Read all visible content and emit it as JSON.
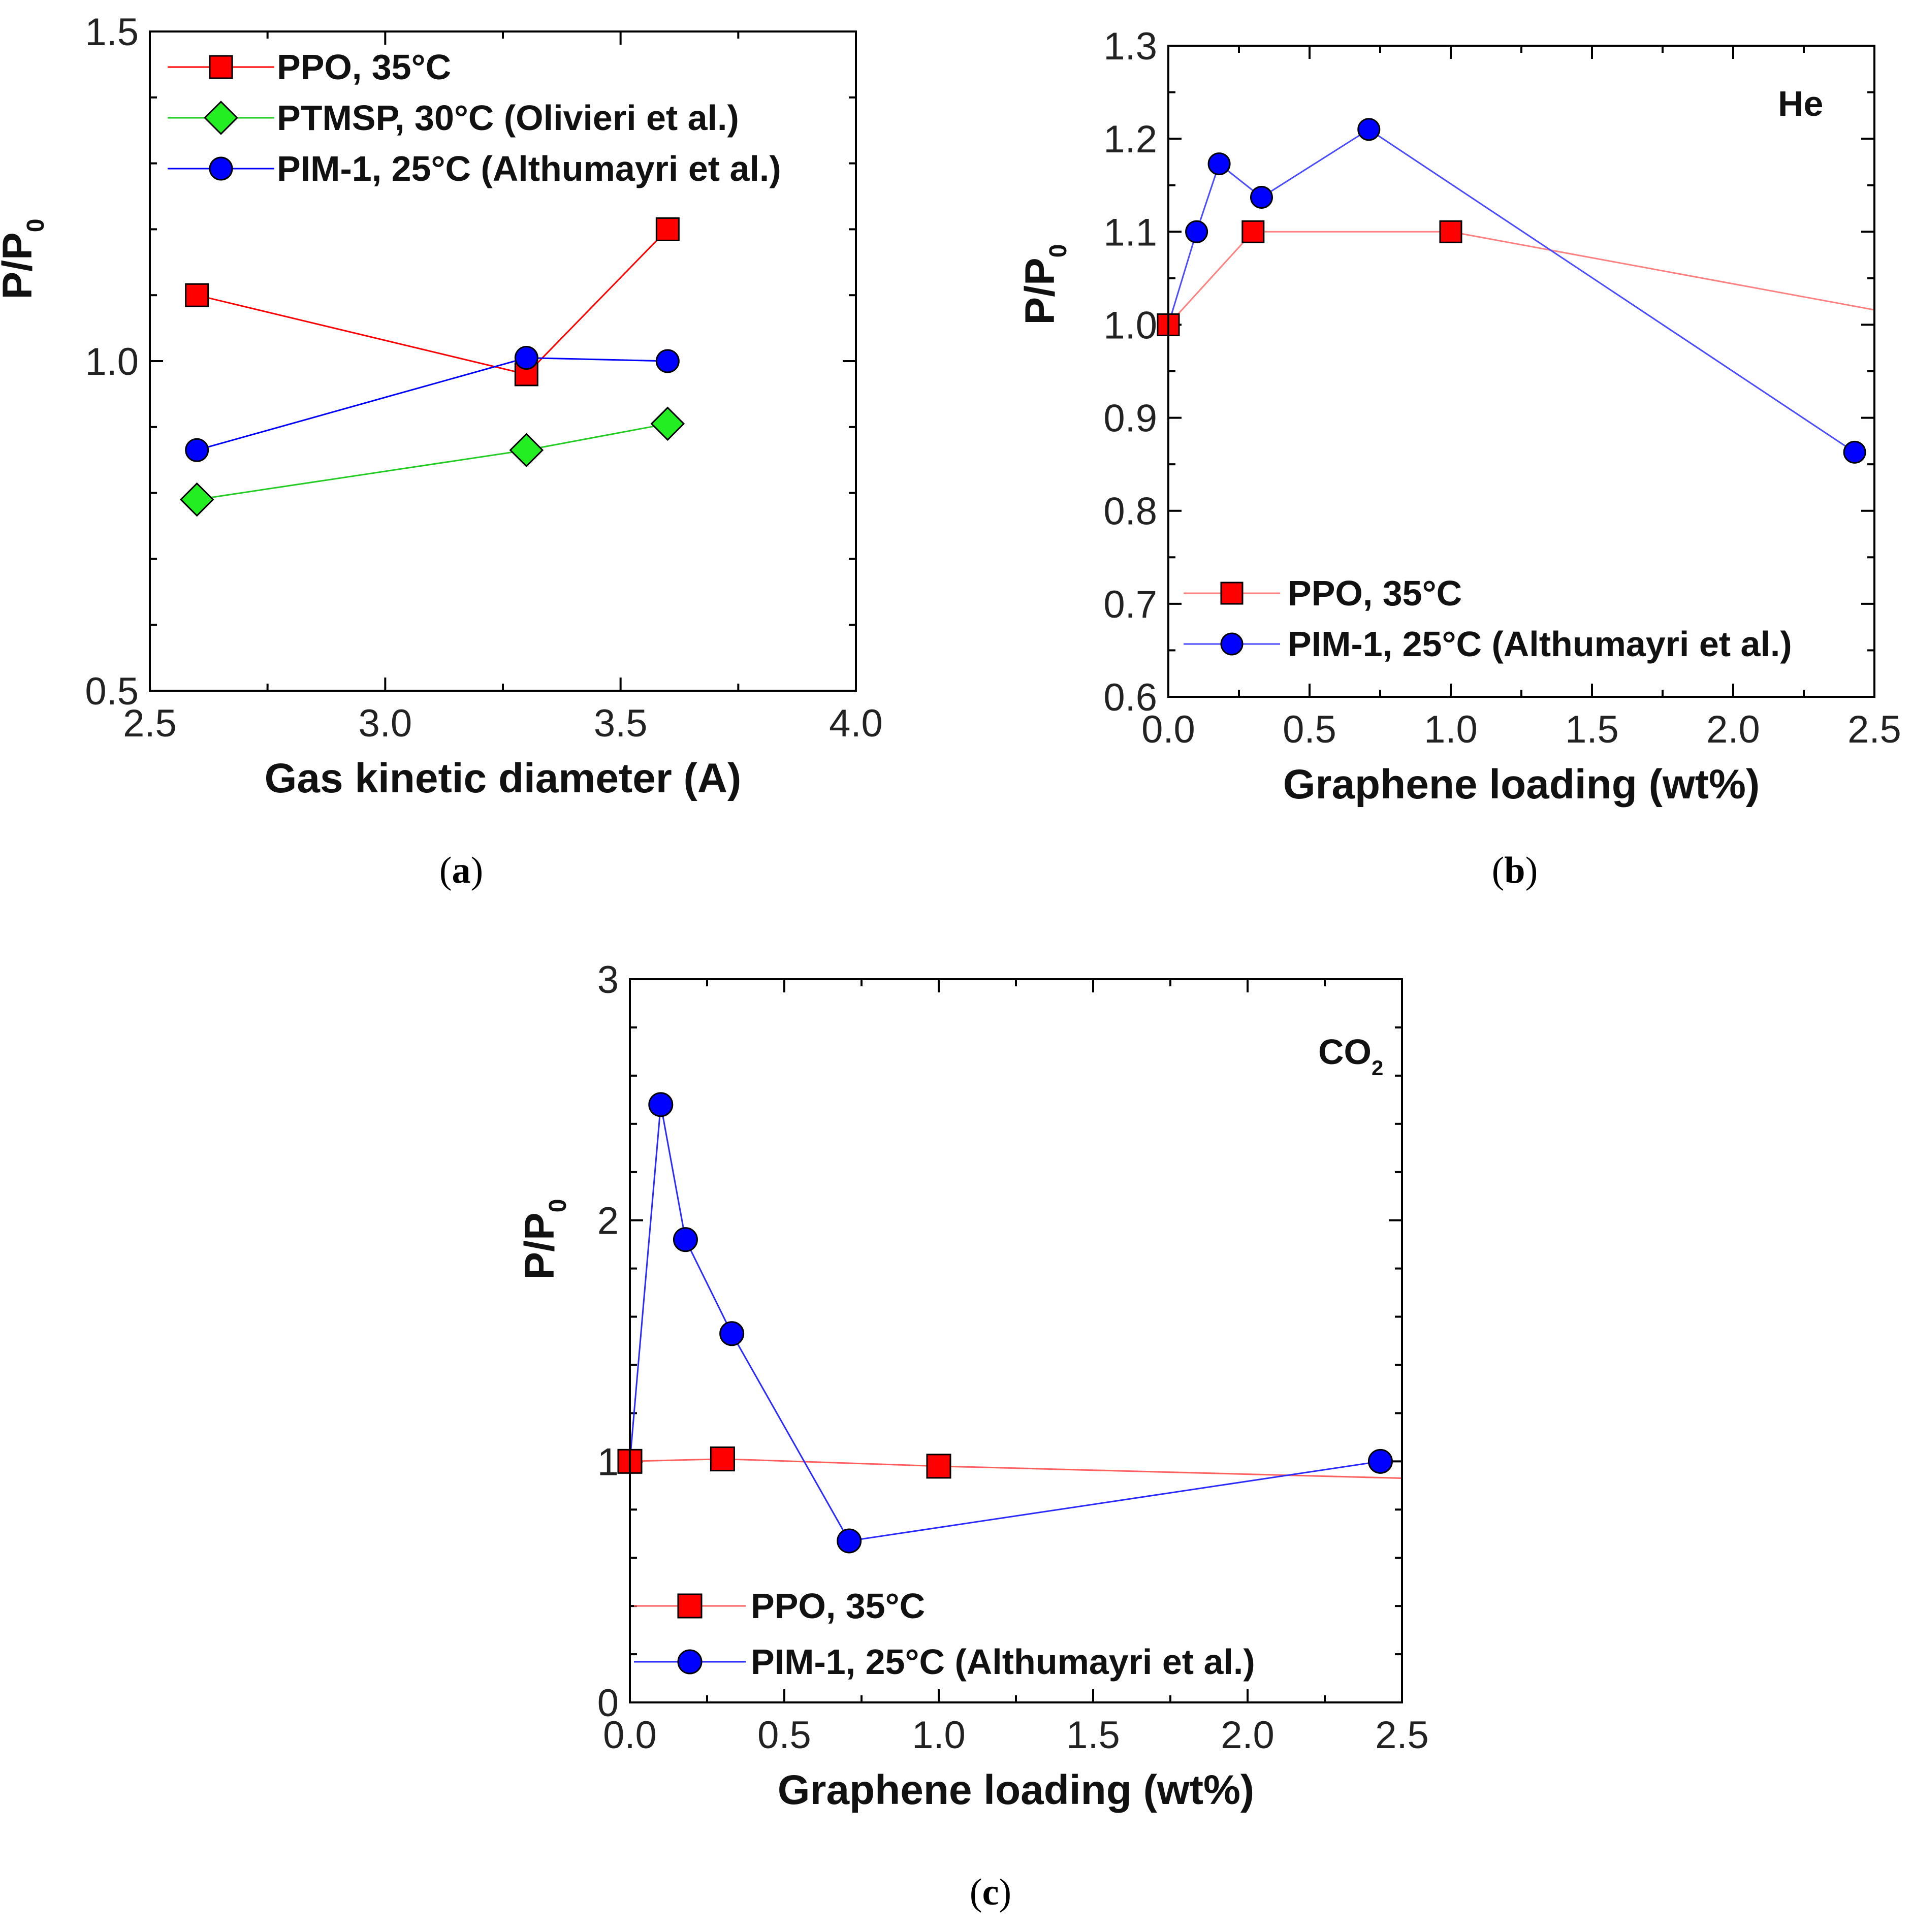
{
  "chart_data": [
    {
      "id": "a",
      "type": "line",
      "caption": "a",
      "xlabel": "Gas kinetic diameter (A)",
      "ylabel": "P/P",
      "ylabel_sub": "0",
      "xlim": [
        2.5,
        4.0
      ],
      "ylim": [
        0.5,
        1.5
      ],
      "xticks": [
        2.5,
        3.0,
        3.5,
        4.0
      ],
      "xtick_labels": [
        "2.5",
        "3.0",
        "3.5",
        "4.0"
      ],
      "yticks": [
        0.5,
        1.0,
        1.5
      ],
      "ytick_labels": [
        "0.5",
        "1.0",
        "1.5"
      ],
      "legend_position": "top-left",
      "annotation": "",
      "annotation_sub": "",
      "series": [
        {
          "name": "PPO, 35°C",
          "marker": "square",
          "color": "#ff0000",
          "line_color": "#ff0000",
          "x": [
            2.6,
            3.3,
            3.6
          ],
          "y": [
            1.1,
            0.98,
            1.2
          ]
        },
        {
          "name": "PTMSP, 30°C (Olivieri et al.)",
          "marker": "diamond",
          "color": "#22ee22",
          "line_color": "#22cc22",
          "x": [
            2.6,
            3.3,
            3.6
          ],
          "y": [
            0.79,
            0.865,
            0.905
          ]
        },
        {
          "name": "PIM-1, 25°C (Althumayri et al.)",
          "marker": "circle",
          "color": "#0000ff",
          "line_color": "#0000ff",
          "x": [
            2.6,
            3.3,
            3.6
          ],
          "y": [
            0.865,
            1.005,
            1.0
          ]
        }
      ]
    },
    {
      "id": "b",
      "type": "line",
      "caption": "b",
      "xlabel": "Graphene loading (wt%)",
      "ylabel": "P/P",
      "ylabel_sub": "0",
      "xlim": [
        0.0,
        2.5
      ],
      "ylim": [
        0.6,
        1.3
      ],
      "xticks": [
        0.0,
        0.5,
        1.0,
        1.5,
        2.0,
        2.5
      ],
      "xtick_labels": [
        "0.0",
        "0.5",
        "1.0",
        "1.5",
        "2.0",
        "2.5"
      ],
      "yticks": [
        0.6,
        0.7,
        0.8,
        0.9,
        1.0,
        1.1,
        1.2,
        1.3
      ],
      "ytick_labels": [
        "0.6",
        "0.7",
        "0.8",
        "0.9",
        "1.0",
        "1.1",
        "1.2",
        "1.3"
      ],
      "legend_position": "bottom-left",
      "annotation": "He",
      "annotation_sub": "",
      "series": [
        {
          "name": "PPO, 35°C",
          "marker": "square",
          "color": "#ff0000",
          "line_color": "#ff8080",
          "x": [
            0.0,
            0.3,
            1.0,
            2.5
          ],
          "y": [
            1.0,
            1.1,
            1.1,
            1.016
          ],
          "hidden_markers": [
            3
          ]
        },
        {
          "name": "PIM-1, 25°C (Althumayri et al.)",
          "marker": "circle",
          "color": "#0000ff",
          "line_color": "#4a4aff",
          "x": [
            0.0,
            0.1,
            0.18,
            0.33,
            0.71,
            2.43
          ],
          "y": [
            1.0,
            1.1,
            1.173,
            1.137,
            1.21,
            0.863
          ],
          "hidden_markers": [
            0
          ]
        }
      ]
    },
    {
      "id": "c",
      "type": "line",
      "caption": "c",
      "xlabel": "Graphene loading (wt%)",
      "ylabel": "P/P",
      "ylabel_sub": "0",
      "xlim": [
        0.0,
        2.5
      ],
      "ylim": [
        0,
        3
      ],
      "xticks": [
        0.0,
        0.5,
        1.0,
        1.5,
        2.0,
        2.5
      ],
      "xtick_labels": [
        "0.0",
        "0.5",
        "1.0",
        "1.5",
        "2.0",
        "2.5"
      ],
      "yticks": [
        0,
        1,
        2,
        3
      ],
      "ytick_labels": [
        "0",
        "1",
        "2",
        "3"
      ],
      "legend_position": "bottom-left",
      "annotation": "CO",
      "annotation_sub": "2",
      "series": [
        {
          "name": "PPO, 35°C",
          "marker": "square",
          "color": "#ff0000",
          "line_color": "#ff6060",
          "x": [
            0.0,
            0.3,
            1.0,
            2.5
          ],
          "y": [
            1.0,
            1.01,
            0.98,
            0.93
          ],
          "hidden_markers": [
            3
          ]
        },
        {
          "name": "PIM-1, 25°C (Althumayri et al.)",
          "marker": "circle",
          "color": "#0000ff",
          "line_color": "#2a2aff",
          "x": [
            0.0,
            0.1,
            0.18,
            0.33,
            0.71,
            2.43
          ],
          "y": [
            1.0,
            2.48,
            1.92,
            1.53,
            0.67,
            1.0
          ],
          "hidden_markers": [
            0
          ]
        }
      ]
    }
  ]
}
